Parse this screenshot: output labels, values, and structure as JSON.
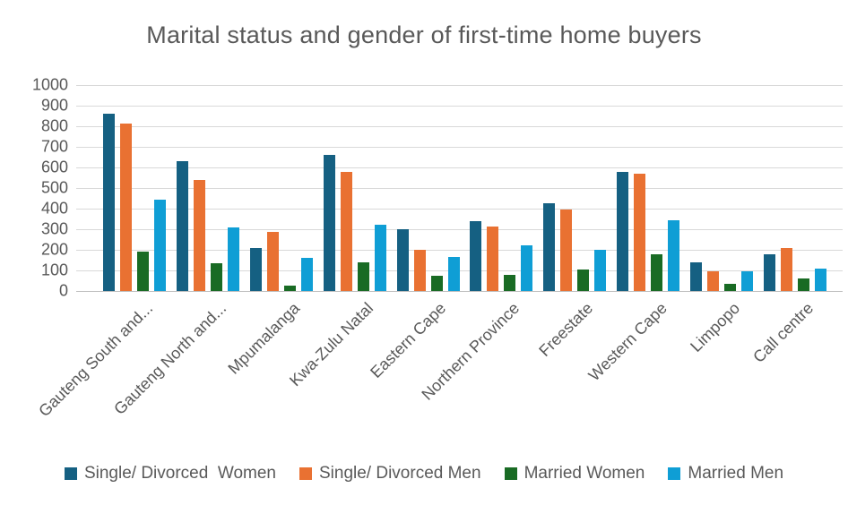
{
  "title": "Marital status and gender of first-time home buyers",
  "colors": {
    "series1": "#156082",
    "series2": "#E97132",
    "series3": "#196B24",
    "series4": "#0F9ED5",
    "gridline": "#D9D9D9",
    "axis_line": "#BFBFBF",
    "text": "#595959"
  },
  "chart_data": {
    "type": "bar",
    "title": "Marital status and gender of first-time home buyers",
    "categories": [
      "Gauteng South and...",
      "Gauteng North and...",
      "Mpumalanga",
      "Kwa-Zulu Natal",
      "Eastern Cape",
      "Northern Province",
      "Freestate",
      "Western Cape",
      "Limpopo",
      "Call centre"
    ],
    "series": [
      {
        "name": "Single/ Divorced  Women",
        "color": "#156082",
        "values": [
          860,
          630,
          210,
          660,
          300,
          340,
          425,
          580,
          140,
          180
        ]
      },
      {
        "name": "Single/ Divorced Men",
        "color": "#E97132",
        "values": [
          815,
          540,
          285,
          580,
          200,
          315,
          395,
          570,
          95,
          210
        ]
      },
      {
        "name": "Married Women",
        "color": "#196B24",
        "values": [
          190,
          135,
          25,
          140,
          75,
          80,
          105,
          180,
          35,
          60
        ]
      },
      {
        "name": "Married Men",
        "color": "#0F9ED5",
        "values": [
          445,
          310,
          160,
          320,
          165,
          220,
          200,
          345,
          95,
          110
        ]
      }
    ],
    "xlabel": "",
    "ylabel": "",
    "ylim": [
      0,
      1000
    ],
    "ytick_step": 100,
    "grid": true,
    "legend_position": "bottom"
  }
}
